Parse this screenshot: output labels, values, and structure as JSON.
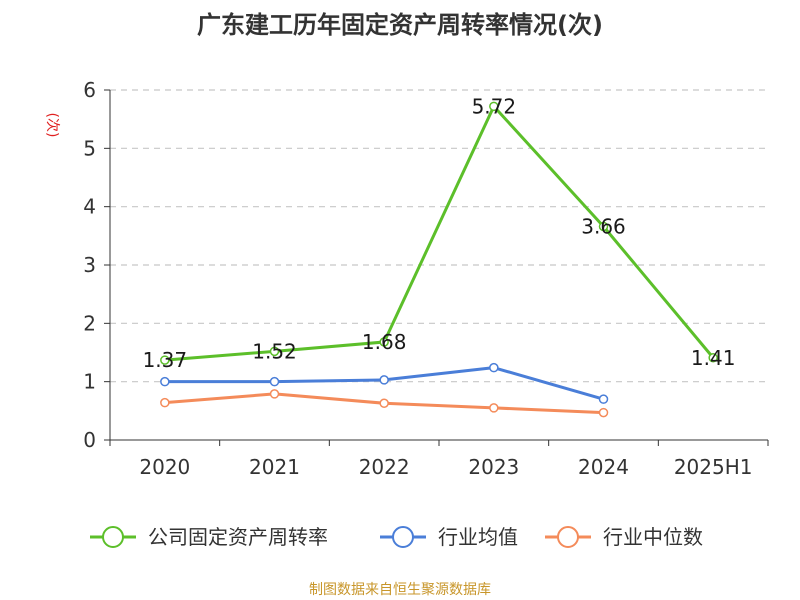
{
  "chart_data": {
    "type": "line",
    "title": "广东建工历年固定资产周转率情况(次)",
    "ylabel": "(次)",
    "categories": [
      "2020",
      "2021",
      "2022",
      "2023",
      "2024",
      "2025H1"
    ],
    "ylim": [
      0,
      6
    ],
    "yticks": [
      "0",
      "1",
      "2",
      "3",
      "4",
      "5",
      "6"
    ],
    "grid": true,
    "legend_position": "bottom",
    "series": [
      {
        "name": "公司固定资产周转率",
        "color": "#5cbf2a",
        "values": [
          1.37,
          1.52,
          1.68,
          5.72,
          3.66,
          1.41
        ],
        "labels": [
          "1.37",
          "1.52",
          "1.68",
          "5.72",
          "3.66",
          "1.41"
        ]
      },
      {
        "name": "行业均值",
        "color": "#4a7ed8",
        "values": [
          1.0,
          1.0,
          1.03,
          1.24,
          0.7,
          null
        ]
      },
      {
        "name": "行业中位数",
        "color": "#f48b5a",
        "values": [
          0.64,
          0.79,
          0.63,
          0.55,
          0.47,
          null
        ]
      }
    ],
    "source": "制图数据来自恒生聚源数据库"
  }
}
